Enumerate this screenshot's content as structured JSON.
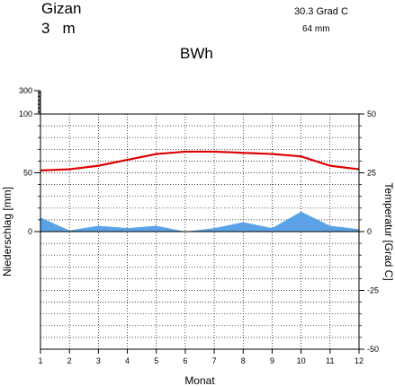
{
  "header": {
    "station": "Gizan",
    "elevation_value": "3",
    "elevation_unit": "m",
    "annual_temperature": "30.3 Grad C",
    "annual_precipitation": "64 mm",
    "climate_class": "BWh"
  },
  "chart_data": {
    "type": "area",
    "title": "",
    "xlabel": "Monat",
    "ylabel_left": "Niederschlag [mm]",
    "ylabel_right": "Temperatur [Grad C]",
    "x": [
      1,
      2,
      3,
      4,
      5,
      6,
      7,
      8,
      9,
      10,
      11,
      12
    ],
    "x_ticks": [
      "1",
      "2",
      "3",
      "4",
      "5",
      "6",
      "7",
      "8",
      "9",
      "10",
      "11",
      "12"
    ],
    "left_ticks": [
      "300",
      "100",
      "50",
      "0"
    ],
    "right_ticks": [
      "50",
      "25",
      "0",
      "-25",
      "-50"
    ],
    "ylim_left": [
      0,
      300
    ],
    "ylim_right": [
      -50,
      50
    ],
    "grid": true,
    "colors": {
      "precipitation": "#5ba3e6",
      "temperature": "#dd0000",
      "grid": "#000000"
    },
    "series": [
      {
        "kind": "precipitation",
        "axis": "left",
        "values": [
          12,
          1,
          5,
          3,
          5,
          0,
          3,
          8,
          3,
          17,
          5,
          2
        ]
      },
      {
        "kind": "temperature",
        "axis": "right",
        "values": [
          26.0,
          26.5,
          28.0,
          30.5,
          33.0,
          34.0,
          34.0,
          33.5,
          33.0,
          32.0,
          28.0,
          26.5
        ]
      }
    ]
  }
}
